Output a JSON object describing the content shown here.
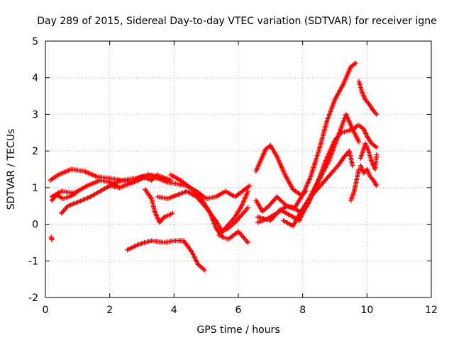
{
  "chart_data": {
    "type": "scatter",
    "title": "Day 289 of 2015, Sidereal Day-to-day VTEC variation (SDTVAR) for receiver igne",
    "xlabel": "GPS time / hours",
    "ylabel": "SDTVAR / TECUs",
    "xlim": [
      0,
      12
    ],
    "ylim": [
      -2,
      5
    ],
    "xticks": [
      "0",
      "2",
      "4",
      "6",
      "8",
      "10",
      "12"
    ],
    "yticks": [
      "-2",
      "-1",
      "0",
      "1",
      "2",
      "3",
      "4",
      "5"
    ],
    "grid": true,
    "marker": "+",
    "color": "#ff0000",
    "series": [
      {
        "x": [
          0.15,
          0.4,
          0.8,
          1.2,
          1.6,
          2.0,
          2.4,
          2.8,
          3.2,
          3.6,
          3.9
        ],
        "y": [
          1.2,
          1.35,
          1.5,
          1.45,
          1.3,
          1.25,
          1.2,
          1.25,
          1.35,
          1.3,
          1.2
        ]
      },
      {
        "x": [
          0.2,
          0.5,
          0.9,
          1.3,
          1.7,
          2.0,
          2.3
        ],
        "y": [
          0.75,
          0.9,
          0.85,
          1.05,
          1.2,
          1.15,
          1.0
        ]
      },
      {
        "x": [
          0.2,
          0.35,
          0.55,
          0.75,
          0.95
        ],
        "y": [
          0.65,
          0.8,
          0.7,
          0.75,
          0.85
        ]
      },
      {
        "x": [
          0.5,
          0.7,
          1.0,
          1.4,
          1.8,
          2.1,
          2.4,
          2.7,
          3.0,
          3.3,
          3.5
        ],
        "y": [
          0.3,
          0.5,
          0.6,
          0.75,
          0.95,
          1.1,
          1.2,
          1.15,
          1.3,
          1.2,
          1.35
        ]
      },
      {
        "x": [
          0.18,
          0.2
        ],
        "y": [
          -0.35,
          -0.42
        ]
      },
      {
        "x": [
          2.0,
          2.3,
          2.6,
          2.9,
          3.2,
          3.5,
          3.8,
          4.1,
          4.4,
          4.7,
          5.0,
          5.3,
          5.6,
          5.9,
          6.2,
          6.35
        ],
        "y": [
          1.05,
          1.0,
          1.1,
          1.2,
          1.35,
          1.25,
          1.15,
          1.1,
          1.05,
          0.9,
          0.7,
          0.75,
          0.9,
          0.75,
          0.95,
          1.05
        ]
      },
      {
        "x": [
          3.1,
          3.3,
          3.4,
          3.55,
          3.7,
          3.85,
          3.95
        ],
        "y": [
          0.95,
          0.7,
          0.35,
          0.05,
          0.2,
          0.25,
          0.3
        ]
      },
      {
        "x": [
          3.5,
          3.8,
          4.1,
          4.4,
          4.7,
          5.0,
          5.3,
          5.5,
          5.7,
          5.9,
          6.1,
          6.3
        ],
        "y": [
          0.75,
          0.7,
          0.8,
          0.9,
          0.75,
          0.45,
          0.1,
          -0.2,
          -0.1,
          0.05,
          0.25,
          0.45
        ]
      },
      {
        "x": [
          3.9,
          4.2,
          4.5,
          4.8,
          5.1,
          5.3,
          5.5,
          5.7,
          6.0,
          6.3
        ],
        "y": [
          1.35,
          1.2,
          1.0,
          0.75,
          0.35,
          -0.1,
          -0.35,
          -0.4,
          -0.2,
          -0.5
        ]
      },
      {
        "x": [
          5.4,
          5.6,
          5.9,
          6.1,
          6.3
        ],
        "y": [
          -0.3,
          -0.1,
          0.2,
          0.5,
          0.9
        ]
      },
      {
        "x": [
          2.55,
          2.9,
          3.3,
          3.7,
          4.0,
          4.3,
          4.55,
          4.75,
          4.95
        ],
        "y": [
          -0.7,
          -0.55,
          -0.45,
          -0.5,
          -0.45,
          -0.45,
          -0.75,
          -1.1,
          -1.25
        ]
      },
      {
        "x": [
          6.55,
          6.7,
          6.85,
          7.0,
          7.2,
          7.45,
          7.7,
          7.95,
          8.1
        ],
        "y": [
          1.45,
          1.75,
          2.05,
          2.15,
          1.85,
          1.35,
          0.95,
          0.8,
          0.9
        ]
      },
      {
        "x": [
          6.55,
          6.75,
          6.95,
          7.2,
          7.5,
          7.75,
          8.0,
          8.25,
          8.5,
          8.75,
          9.0,
          9.25,
          9.5,
          9.65
        ],
        "y": [
          0.65,
          0.35,
          0.5,
          0.75,
          0.5,
          0.45,
          0.8,
          1.3,
          2.0,
          2.8,
          3.4,
          3.8,
          4.3,
          4.4
        ]
      },
      {
        "x": [
          6.6,
          6.9,
          7.2,
          7.5,
          7.8,
          8.0,
          8.2,
          8.45,
          8.7,
          9.0,
          9.2,
          9.4,
          9.6,
          9.7
        ],
        "y": [
          0.05,
          0.15,
          0.3,
          0.5,
          0.4,
          0.3,
          0.6,
          1.1,
          1.7,
          2.3,
          2.5,
          2.55,
          2.6,
          2.7
        ]
      },
      {
        "x": [
          6.6,
          7.0,
          7.3,
          7.6,
          7.9,
          8.2,
          8.5,
          8.8,
          9.1,
          9.35,
          9.55,
          9.75
        ],
        "y": [
          0.2,
          0.1,
          0.4,
          0.25,
          0.1,
          0.7,
          1.2,
          1.7,
          2.4,
          3.0,
          2.6,
          2.25
        ]
      },
      {
        "x": [
          7.4,
          7.7,
          7.95,
          8.2,
          8.5,
          8.8,
          9.1,
          9.3,
          9.45,
          9.55
        ],
        "y": [
          0.1,
          -0.05,
          0.35,
          0.7,
          1.0,
          1.3,
          1.6,
          1.85,
          2.0,
          1.6
        ]
      },
      {
        "x": [
          9.5,
          9.6,
          9.7,
          9.75
        ],
        "y": [
          0.65,
          0.9,
          1.3,
          1.5
        ]
      },
      {
        "x": [
          9.75,
          9.85,
          9.95,
          10.05,
          10.2,
          10.3
        ],
        "y": [
          3.9,
          3.6,
          3.4,
          3.3,
          3.1,
          3.0
        ]
      },
      {
        "x": [
          9.75,
          9.9,
          10.0,
          10.15,
          10.3
        ],
        "y": [
          2.7,
          2.6,
          2.4,
          2.2,
          2.1
        ]
      },
      {
        "x": [
          9.8,
          9.95,
          10.05,
          10.15,
          10.25,
          10.3
        ],
        "y": [
          1.8,
          2.2,
          2.0,
          1.7,
          1.5,
          1.9
        ]
      },
      {
        "x": [
          9.8,
          9.9,
          10.0,
          10.1,
          10.2,
          10.3
        ],
        "y": [
          1.6,
          1.4,
          1.5,
          1.3,
          1.2,
          1.05
        ]
      }
    ]
  }
}
